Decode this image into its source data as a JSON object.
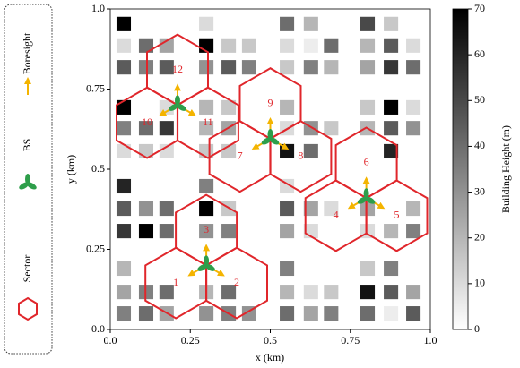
{
  "chart_data": {
    "type": "coverage-map",
    "xlabel": "x (km)",
    "ylabel": "y (km)",
    "xlim": [
      0,
      1
    ],
    "ylim": [
      0,
      1
    ],
    "xticks": [
      {
        "value": 0,
        "label": "0.0"
      },
      0.25,
      0.5,
      0.75,
      {
        "value": 1,
        "label": "1.0"
      }
    ],
    "yticks": [
      {
        "value": 0,
        "label": "0.0"
      },
      0.25,
      0.5,
      0.75,
      {
        "value": 1,
        "label": "1.0"
      }
    ],
    "colorbar": {
      "label": "Building Height (m)",
      "clim": [
        0,
        70
      ],
      "ticks": [
        0,
        10,
        20,
        30,
        40,
        50,
        60,
        70
      ],
      "colormap": "gray_r"
    },
    "legend": [
      "Boresight",
      "BS",
      "Sector"
    ],
    "sector_color": "#e0262b",
    "bs_color": "#2e9e4a",
    "boresight_color": "#f4b400",
    "buildings": {
      "x": [
        0.042,
        0.3,
        0.552,
        0.627,
        0.804,
        0.877,
        0.042,
        0.112,
        0.176,
        0.3,
        0.37,
        0.434,
        0.552,
        0.627,
        0.69,
        0.804,
        0.877,
        0.947,
        0.042,
        0.112,
        0.176,
        0.3,
        0.37,
        0.434,
        0.552,
        0.627,
        0.69,
        0.804,
        0.877,
        0.947,
        0.042,
        0.176,
        0.3,
        0.37,
        0.552,
        0.804,
        0.877,
        0.947,
        0.042,
        0.112,
        0.176,
        0.3,
        0.37,
        0.552,
        0.627,
        0.69,
        0.804,
        0.877,
        0.947,
        0.042,
        0.112,
        0.176,
        0.3,
        0.37,
        0.552,
        0.627,
        0.877,
        0.042,
        0.3,
        0.552,
        0.042,
        0.112,
        0.176,
        0.3,
        0.37,
        0.552,
        0.627,
        0.69,
        0.804,
        0.947,
        0.042,
        0.112,
        0.176,
        0.3,
        0.37,
        0.552,
        0.627,
        0.804,
        0.877,
        0.947,
        0.042,
        0.552,
        0.804,
        0.877,
        0.042,
        0.112,
        0.176,
        0.3,
        0.37,
        0.552,
        0.627,
        0.69,
        0.804,
        0.877,
        0.947,
        0.042,
        0.112,
        0.176,
        0.3,
        0.37,
        0.434,
        0.552,
        0.627,
        0.69,
        0.804,
        0.877,
        0.947
      ],
      "y": [
        0.953,
        0.953,
        0.953,
        0.953,
        0.953,
        0.953,
        0.886,
        0.886,
        0.886,
        0.886,
        0.886,
        0.886,
        0.886,
        0.886,
        0.886,
        0.886,
        0.886,
        0.886,
        0.818,
        0.818,
        0.818,
        0.818,
        0.818,
        0.818,
        0.818,
        0.818,
        0.818,
        0.818,
        0.818,
        0.818,
        0.693,
        0.693,
        0.693,
        0.693,
        0.693,
        0.693,
        0.693,
        0.693,
        0.628,
        0.628,
        0.628,
        0.628,
        0.628,
        0.628,
        0.628,
        0.628,
        0.628,
        0.628,
        0.628,
        0.556,
        0.556,
        0.556,
        0.556,
        0.556,
        0.556,
        0.556,
        0.556,
        0.447,
        0.447,
        0.447,
        0.377,
        0.377,
        0.377,
        0.377,
        0.377,
        0.377,
        0.377,
        0.377,
        0.377,
        0.377,
        0.307,
        0.307,
        0.307,
        0.307,
        0.307,
        0.307,
        0.307,
        0.307,
        0.307,
        0.307,
        0.19,
        0.19,
        0.19,
        0.19,
        0.117,
        0.117,
        0.117,
        0.117,
        0.117,
        0.117,
        0.117,
        0.117,
        0.117,
        0.117,
        0.117,
        0.05,
        0.05,
        0.05,
        0.05,
        0.05,
        0.05,
        0.05,
        0.05,
        0.05,
        0.05,
        0.05,
        0.05
      ],
      "heights": [
        70,
        10,
        40,
        20,
        50,
        15,
        10,
        40,
        25,
        70,
        15,
        15,
        10,
        5,
        40,
        20,
        45,
        10,
        45,
        35,
        45,
        30,
        45,
        35,
        15,
        35,
        20,
        25,
        55,
        40,
        70,
        10,
        20,
        15,
        20,
        15,
        70,
        10,
        35,
        40,
        55,
        20,
        25,
        10,
        30,
        15,
        20,
        45,
        30,
        10,
        15,
        10,
        15,
        15,
        65,
        40,
        60,
        60,
        35,
        10,
        45,
        30,
        40,
        70,
        15,
        45,
        25,
        10,
        25,
        20,
        55,
        70,
        40,
        30,
        35,
        25,
        10,
        10,
        20,
        35,
        20,
        35,
        15,
        35,
        25,
        35,
        40,
        20,
        40,
        20,
        10,
        15,
        65,
        45,
        25,
        35,
        40,
        25,
        30,
        35,
        30,
        40,
        25,
        35,
        40,
        5,
        45
      ]
    },
    "base_stations": {
      "x": [
        0.3,
        0.21,
        0.5,
        0.8
      ],
      "y": [
        0.2,
        0.7,
        0.595,
        0.41
      ]
    },
    "sectors": {
      "labels": [
        "1",
        "2",
        "3",
        "4",
        "5",
        "6",
        "7",
        "8",
        "9",
        "10",
        "11",
        "12"
      ],
      "bs": [
        0,
        0,
        0,
        3,
        3,
        3,
        2,
        2,
        2,
        1,
        1,
        1
      ],
      "x": [
        0.205,
        0.395,
        0.3,
        0.705,
        0.895,
        0.8,
        0.405,
        0.595,
        0.5,
        0.115,
        0.305,
        0.21
      ],
      "y": [
        0.145,
        0.145,
        0.31,
        0.355,
        0.355,
        0.52,
        0.54,
        0.54,
        0.705,
        0.645,
        0.645,
        0.81
      ]
    }
  }
}
